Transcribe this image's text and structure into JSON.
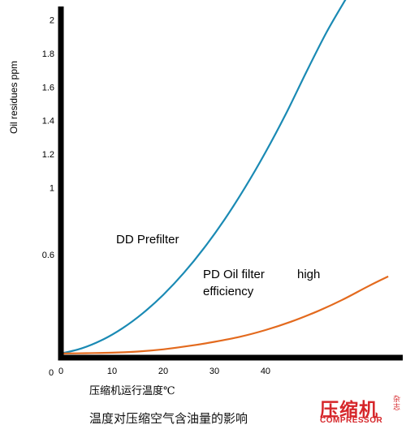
{
  "chart_data": {
    "type": "line",
    "ylabel": "Oil residues ppm",
    "xlabel": "压缩机运行温度℃",
    "x_ticks": [
      "0",
      "10",
      "20",
      "30",
      "40"
    ],
    "y_ticks": [
      "0.6",
      "1",
      "1.2",
      "1.4",
      "1.6",
      "1.8",
      "2"
    ],
    "y_origin_label": "0",
    "xlim": [
      0,
      67
    ],
    "ylim": [
      0,
      2.1
    ],
    "grid": false,
    "series": [
      {
        "name": "DD Prefilter",
        "color": "#1a8ab4",
        "x": [
          0,
          4,
          8,
          12,
          16,
          20,
          24,
          28,
          32,
          36,
          40,
          44,
          48,
          52,
          56
        ],
        "y": [
          0.01,
          0.04,
          0.09,
          0.16,
          0.25,
          0.36,
          0.49,
          0.64,
          0.81,
          1.0,
          1.21,
          1.44,
          1.69,
          1.93,
          2.14
        ]
      },
      {
        "name": "PD Oil filter high efficiency",
        "color": "#e36a1e",
        "x": [
          0,
          5,
          10,
          15,
          20,
          25,
          30,
          35,
          40,
          45,
          50,
          55,
          60,
          64
        ],
        "y": [
          0.01,
          0.012,
          0.015,
          0.022,
          0.035,
          0.055,
          0.08,
          0.11,
          0.15,
          0.2,
          0.26,
          0.33,
          0.41,
          0.47
        ]
      }
    ],
    "annotations": [
      "DD Prefilter",
      "PD Oil filter",
      "high",
      "efficiency"
    ]
  },
  "caption": "温度对压缩空气含油量的影响",
  "logo": {
    "main": "压缩机",
    "side": "杂志",
    "sub": "COMPRESSOR",
    "color": "#d6262a"
  }
}
